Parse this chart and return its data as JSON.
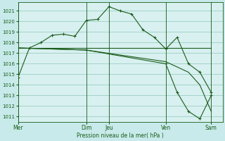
{
  "background_color": "#c8eaea",
  "plot_bg_color": "#d8f0f0",
  "grid_color": "#90c8b8",
  "line_color": "#1a5c1a",
  "xlabel": "Pression niveau de la mer( hPa )",
  "ylim": [
    1010.5,
    1021.8
  ],
  "yticks": [
    1011,
    1012,
    1013,
    1014,
    1015,
    1016,
    1017,
    1018,
    1019,
    1020,
    1021
  ],
  "xtick_labels": [
    "Mer",
    "Dim",
    "Jeu",
    "Ven",
    "Sam"
  ],
  "xtick_pos": [
    0,
    6,
    8,
    13,
    17
  ],
  "vlines": [
    0,
    6,
    8,
    13,
    17
  ],
  "xlim": [
    0,
    18
  ],
  "series": [
    {
      "x": [
        0,
        1,
        2,
        3,
        4,
        5,
        6,
        7,
        8,
        9,
        10,
        11,
        12,
        13,
        14,
        15,
        16,
        17
      ],
      "y": [
        1014.7,
        1017.5,
        1018.0,
        1018.7,
        1018.8,
        1018.6,
        1020.1,
        1020.2,
        1021.4,
        1021.0,
        1020.7,
        1019.2,
        1018.5,
        1017.4,
        1018.5,
        1016.0,
        1015.2,
        1013.3
      ],
      "markers": true
    },
    {
      "x": [
        0,
        6,
        13,
        17
      ],
      "y": [
        1017.5,
        1017.5,
        1017.5,
        1017.5
      ],
      "markers": false
    },
    {
      "x": [
        0,
        6,
        13,
        15,
        16,
        17
      ],
      "y": [
        1017.5,
        1017.3,
        1016.2,
        1015.2,
        1014.0,
        1011.5
      ],
      "markers": false
    },
    {
      "x": [
        0,
        6,
        13,
        14,
        15,
        16,
        17
      ],
      "y": [
        1017.5,
        1017.3,
        1016.0,
        1013.3,
        1011.5,
        1010.8,
        1013.0
      ],
      "markers": true
    }
  ]
}
